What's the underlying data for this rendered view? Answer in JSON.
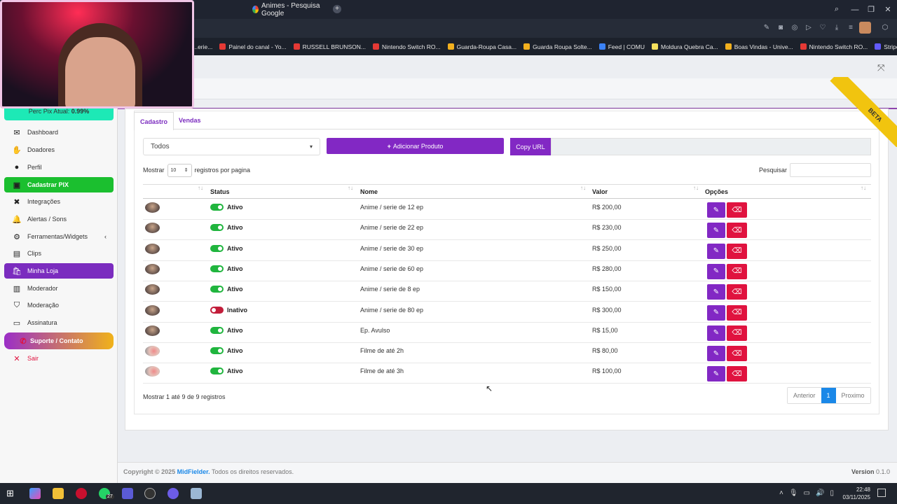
{
  "browser": {
    "tab_title": "Animes - Pesquisa Google",
    "new_tab": "+",
    "bookmarks": [
      {
        "label": "...erie...",
        "color": "#888888"
      },
      {
        "label": "Painel do canal - Yo...",
        "color": "#e53935"
      },
      {
        "label": "RUSSELL BRUNSON...",
        "color": "#e53935"
      },
      {
        "label": "Nintendo Switch RO...",
        "color": "#e53935"
      },
      {
        "label": "Guarda-Roupa Casa...",
        "color": "#f2b01e"
      },
      {
        "label": "Guarda Roupa Solte...",
        "color": "#f2b01e"
      },
      {
        "label": "Feed | COMU",
        "color": "#3b82f6"
      },
      {
        "label": "Moldura Quebra Ca...",
        "color": "#f5e15d"
      },
      {
        "label": "Boas Vindas - Unive...",
        "color": "#f2b01e"
      },
      {
        "label": "Nintendo Switch RO...",
        "color": "#e53935"
      },
      {
        "label": "Stripe Express",
        "color": "#635bff"
      }
    ]
  },
  "sidebar": {
    "perc_label": "Perc Pix Atual:",
    "perc_value": "0.99%",
    "items": [
      {
        "label": "Dashboard",
        "icon": "envelope-icon"
      },
      {
        "label": "Doadores",
        "icon": "hand-icon"
      },
      {
        "label": "Perfil",
        "icon": "user-icon"
      },
      {
        "label": "Cadastrar PIX",
        "icon": "money-icon"
      },
      {
        "label": "Integrações",
        "icon": "puzzle-icon"
      },
      {
        "label": "Alertas / Sons",
        "icon": "bell-icon"
      },
      {
        "label": "Ferramentas/Widgets",
        "icon": "gear-icon",
        "chevron": "‹"
      },
      {
        "label": "Clips",
        "icon": "film-icon"
      },
      {
        "label": "Minha Loja",
        "icon": "bag-icon"
      },
      {
        "label": "Moderador",
        "icon": "id-card-icon"
      },
      {
        "label": "Moderação",
        "icon": "shield-icon"
      },
      {
        "label": "Assinatura",
        "icon": "credit-card-icon"
      },
      {
        "label": "Suporte / Contato",
        "icon": "phone-icon"
      },
      {
        "label": "Sair",
        "icon": "x-icon"
      }
    ]
  },
  "tabs": {
    "cadastro": "Cadastro",
    "vendas": "Vendas"
  },
  "filter": {
    "selected": "Todos"
  },
  "add_button": "Adicionar Produto",
  "copy_url": "Copy URL",
  "beta": "BETA",
  "table_controls": {
    "show_label": "Mostrar",
    "page_size": "10",
    "per_page_label": "registros por pagina",
    "search_label": "Pesquisar"
  },
  "columns": {
    "status": "Status",
    "nome": "Nome",
    "valor": "Valor",
    "opcoes": "Opções"
  },
  "rows": [
    {
      "status": "Ativo",
      "active": true,
      "nome": "Anime / serie de 12 ep",
      "valor": "R$ 200,00"
    },
    {
      "status": "Ativo",
      "active": true,
      "nome": "Anime / serie de 22 ep",
      "valor": "R$ 230,00"
    },
    {
      "status": "Ativo",
      "active": true,
      "nome": "Anime / serie de 30 ep",
      "valor": "R$ 250,00"
    },
    {
      "status": "Ativo",
      "active": true,
      "nome": "Anime / serie de 60 ep",
      "valor": "R$ 280,00"
    },
    {
      "status": "Ativo",
      "active": true,
      "nome": "Anime / serie de 8 ep",
      "valor": "R$ 150,00"
    },
    {
      "status": "Inativo",
      "active": false,
      "nome": "Anime / serie de 80 ep",
      "valor": "R$ 300,00"
    },
    {
      "status": "Ativo",
      "active": true,
      "nome": "Ep. Avulso",
      "valor": "R$ 15,00"
    },
    {
      "status": "Ativo",
      "active": true,
      "nome": "Filme de até 2h",
      "valor": "R$ 80,00"
    },
    {
      "status": "Ativo",
      "active": true,
      "nome": "Filme de até 3h",
      "valor": "R$ 100,00"
    }
  ],
  "info": "Mostrar 1 até 9 de 9 registros",
  "pager": {
    "prev": "Anterior",
    "current": "1",
    "next": "Proximo"
  },
  "footer": {
    "copyright": "Copyright © 2025",
    "brand": "MidFielder.",
    "rights": "Todos os direitos reservados.",
    "version_label": "Version",
    "version": "0.1.0"
  },
  "taskbar": {
    "time": "22:48",
    "date": "03/11/2025",
    "whatsapp_badge": "27"
  }
}
